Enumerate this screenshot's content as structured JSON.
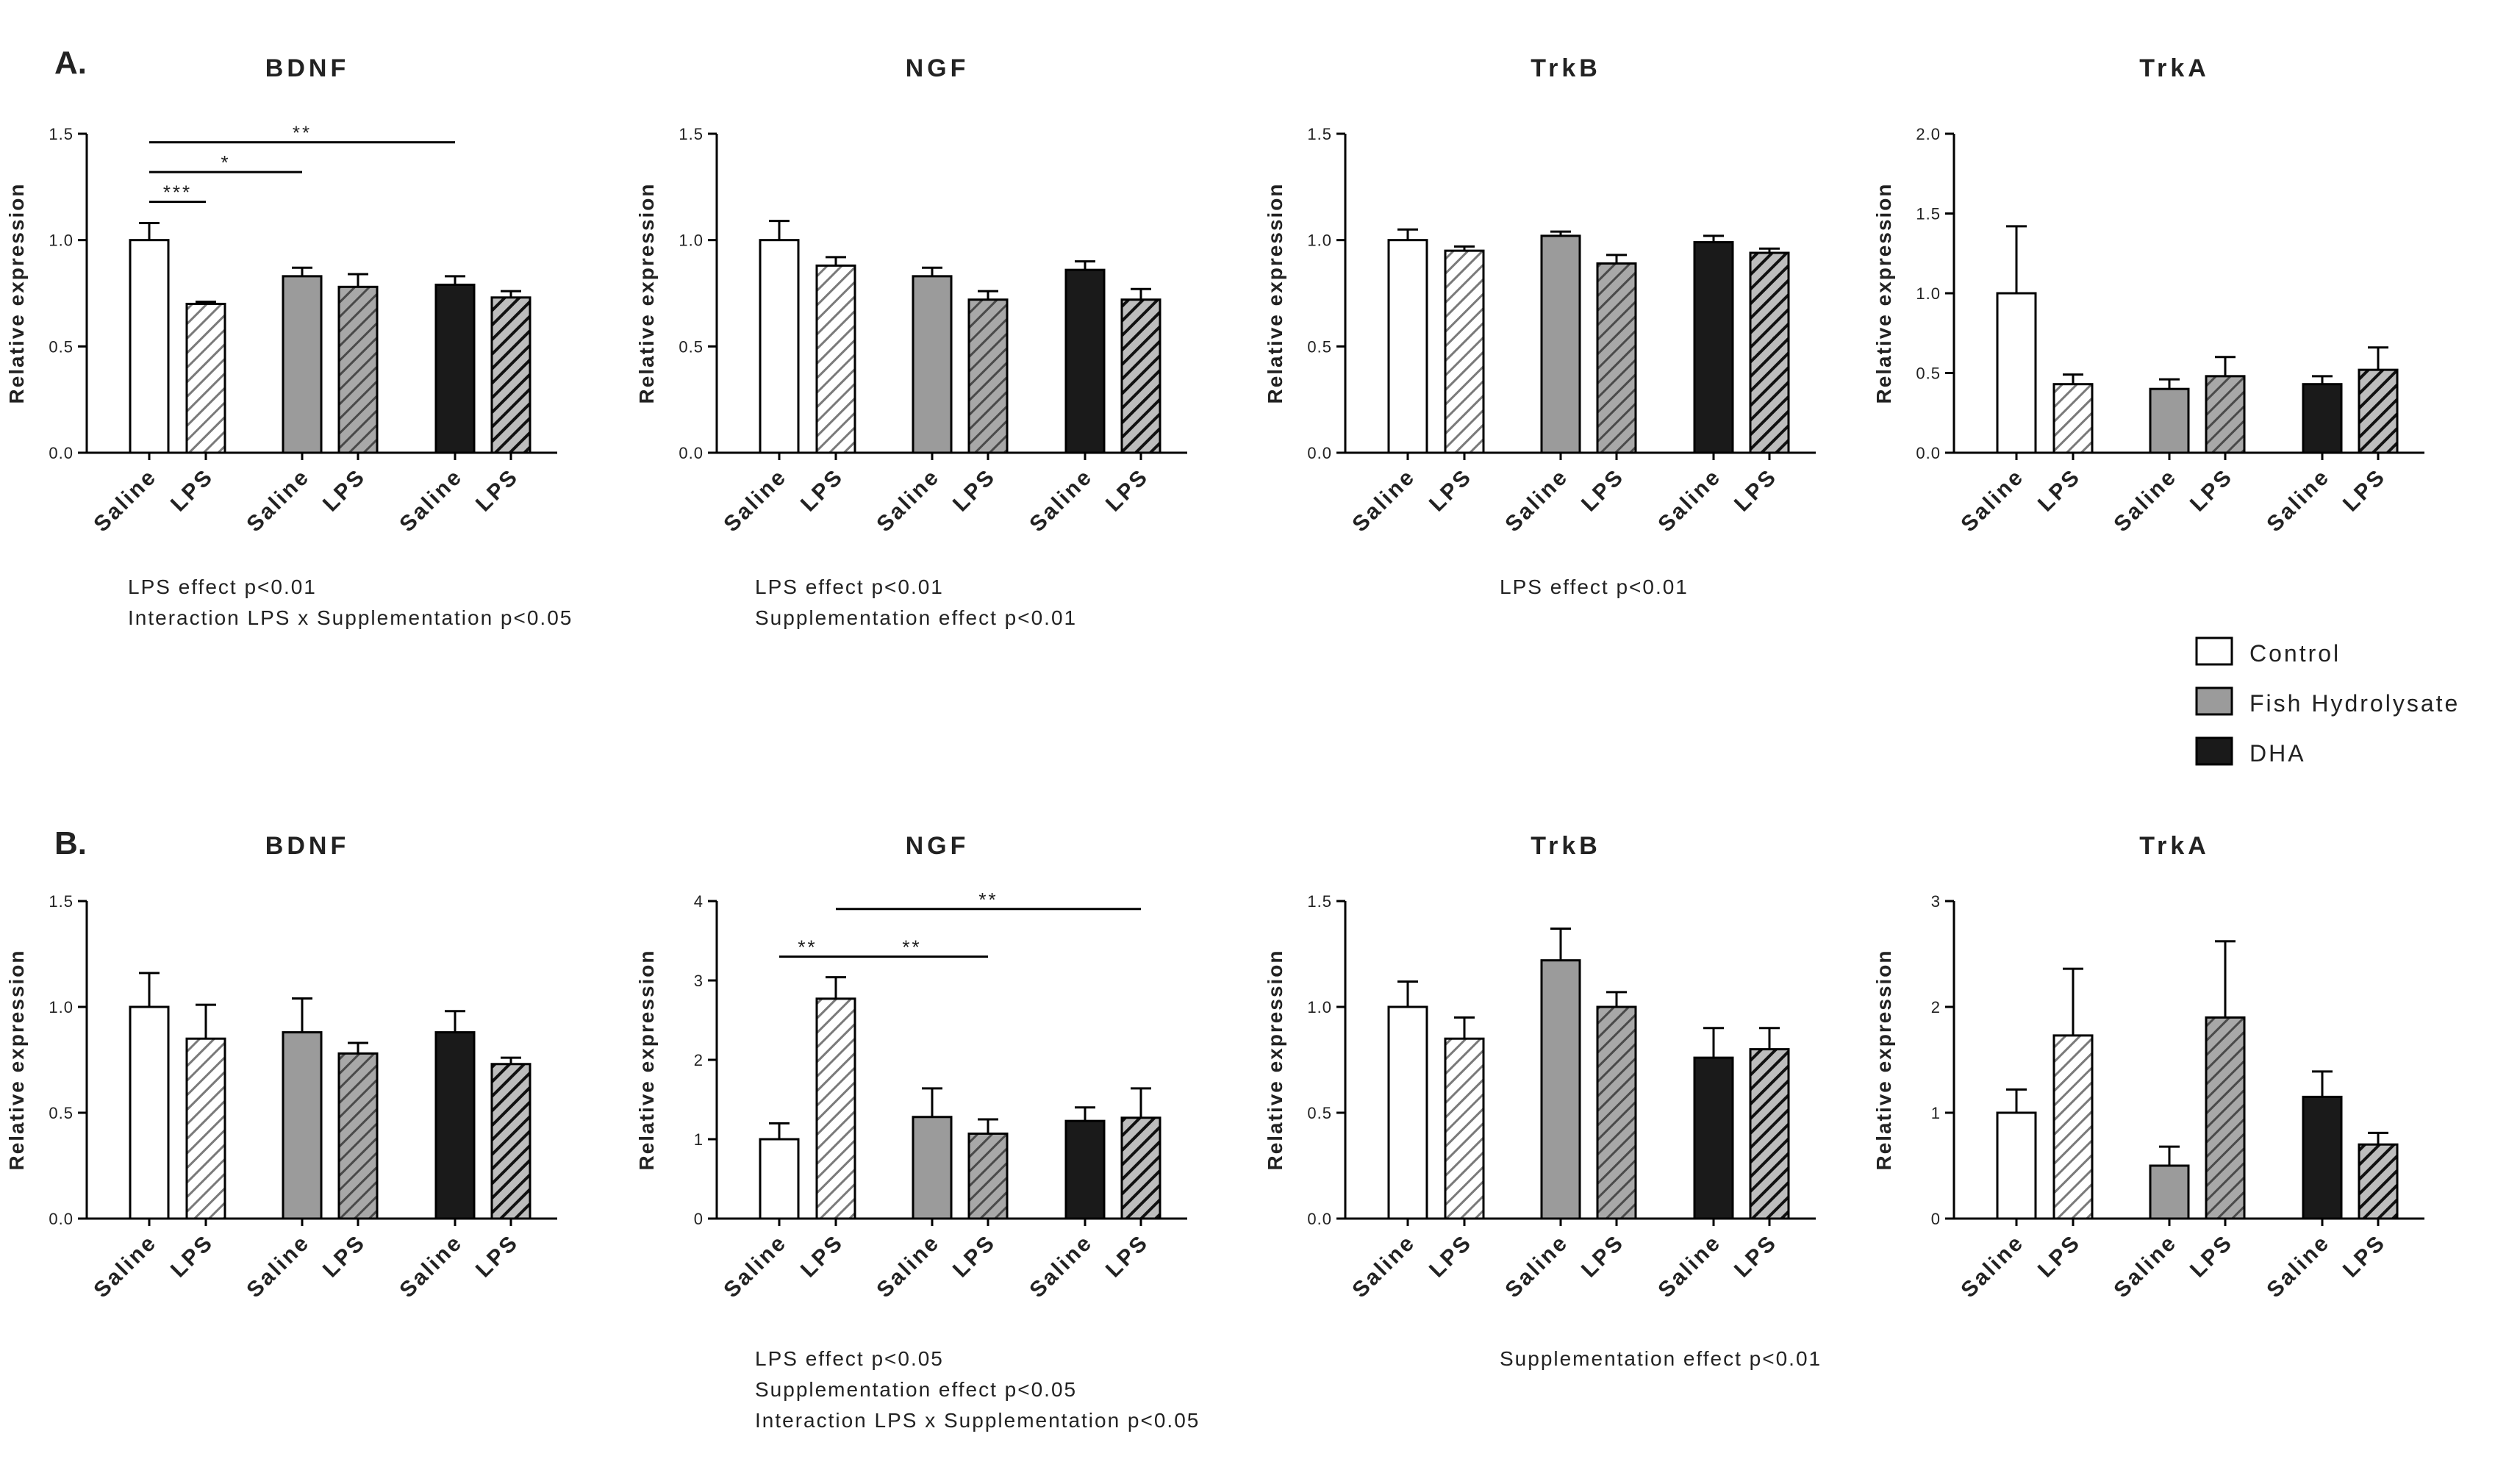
{
  "colors": {
    "control": "#ffffff",
    "fish_hydrolysate": "#9b9b9b",
    "dha": "#1a1a1a",
    "lps_control": "#cfcfcf",
    "lps_fish_hydrolysate": "#7d7d7d",
    "lps_dha": "#2a2a2a",
    "axis": "#000000"
  },
  "legend": [
    {
      "label": "Control",
      "color_key": "control"
    },
    {
      "label": "Fish Hydrolysate",
      "color_key": "fish_hydrolysate"
    },
    {
      "label": "DHA",
      "color_key": "dha"
    }
  ],
  "panels": {
    "A": {
      "label": "A."
    },
    "B": {
      "label": "B."
    }
  },
  "chart_data": [
    {
      "panel": "A",
      "type": "bar",
      "title": "BDNF",
      "ylabel": "Relative expression",
      "xlabel": "",
      "ylim": [
        0,
        1.5
      ],
      "yticks": [
        "0.0",
        "0.5",
        "1.0",
        "1.5"
      ],
      "categories": [
        "Saline",
        "LPS",
        "Saline",
        "LPS",
        "Saline",
        "LPS"
      ],
      "groups": [
        "control",
        "control",
        "fish_hydrolysate",
        "fish_hydrolysate",
        "dha",
        "dha"
      ],
      "values": [
        1.0,
        0.7,
        0.83,
        0.78,
        0.79,
        0.73
      ],
      "errors": [
        0.08,
        0.01,
        0.04,
        0.06,
        0.04,
        0.03
      ],
      "significance": [
        {
          "from": 0,
          "to": 1,
          "label": "***",
          "y": 1.18
        },
        {
          "from": 0,
          "to": 2,
          "label": "*",
          "y": 1.32
        },
        {
          "from": 0,
          "to": 4,
          "label": "**",
          "y": 1.46
        }
      ],
      "notes": [
        "LPS effect p<0.01",
        "Interaction LPS x Supplementation p<0.05"
      ]
    },
    {
      "panel": "A",
      "type": "bar",
      "title": "NGF",
      "ylabel": "Relative expression",
      "xlabel": "",
      "ylim": [
        0,
        1.5
      ],
      "yticks": [
        "0.0",
        "0.5",
        "1.0",
        "1.5"
      ],
      "categories": [
        "Saline",
        "LPS",
        "Saline",
        "LPS",
        "Saline",
        "LPS"
      ],
      "groups": [
        "control",
        "control",
        "fish_hydrolysate",
        "fish_hydrolysate",
        "dha",
        "dha"
      ],
      "values": [
        1.0,
        0.88,
        0.83,
        0.72,
        0.86,
        0.72
      ],
      "errors": [
        0.09,
        0.04,
        0.04,
        0.04,
        0.04,
        0.05
      ],
      "significance": [],
      "notes": [
        "LPS effect p<0.01",
        "Supplementation effect p<0.01"
      ]
    },
    {
      "panel": "A",
      "type": "bar",
      "title": "TrkB",
      "ylabel": "Relative expression",
      "xlabel": "",
      "ylim": [
        0,
        1.5
      ],
      "yticks": [
        "0.0",
        "0.5",
        "1.0",
        "1.5"
      ],
      "categories": [
        "Saline",
        "LPS",
        "Saline",
        "LPS",
        "Saline",
        "LPS"
      ],
      "groups": [
        "control",
        "control",
        "fish_hydrolysate",
        "fish_hydrolysate",
        "dha",
        "dha"
      ],
      "values": [
        1.0,
        0.95,
        1.02,
        0.89,
        0.99,
        0.94
      ],
      "errors": [
        0.05,
        0.02,
        0.02,
        0.04,
        0.03,
        0.02
      ],
      "significance": [],
      "notes": [
        "LPS effect p<0.01"
      ]
    },
    {
      "panel": "A",
      "type": "bar",
      "title": "TrkA",
      "ylabel": "Relative expression",
      "xlabel": "",
      "ylim": [
        0,
        2.0
      ],
      "yticks": [
        "0.0",
        "0.5",
        "1.0",
        "1.5",
        "2.0"
      ],
      "categories": [
        "Saline",
        "LPS",
        "Saline",
        "LPS",
        "Saline",
        "LPS"
      ],
      "groups": [
        "control",
        "control",
        "fish_hydrolysate",
        "fish_hydrolysate",
        "dha",
        "dha"
      ],
      "values": [
        1.0,
        0.43,
        0.4,
        0.48,
        0.43,
        0.52
      ],
      "errors": [
        0.42,
        0.06,
        0.06,
        0.12,
        0.05,
        0.14
      ],
      "significance": [],
      "notes": []
    },
    {
      "panel": "B",
      "type": "bar",
      "title": "BDNF",
      "ylabel": "Relative expression",
      "xlabel": "",
      "ylim": [
        0,
        1.5
      ],
      "yticks": [
        "0.0",
        "0.5",
        "1.0",
        "1.5"
      ],
      "categories": [
        "Saline",
        "LPS",
        "Saline",
        "LPS",
        "Saline",
        "LPS"
      ],
      "groups": [
        "control",
        "control",
        "fish_hydrolysate",
        "fish_hydrolysate",
        "dha",
        "dha"
      ],
      "values": [
        1.0,
        0.85,
        0.88,
        0.78,
        0.88,
        0.73
      ],
      "errors": [
        0.16,
        0.16,
        0.16,
        0.05,
        0.1,
        0.03
      ],
      "significance": [],
      "notes": []
    },
    {
      "panel": "B",
      "type": "bar",
      "title": "NGF",
      "ylabel": "Relative expression",
      "xlabel": "",
      "ylim": [
        0,
        4
      ],
      "yticks": [
        "0",
        "1",
        "2",
        "3",
        "4"
      ],
      "categories": [
        "Saline",
        "LPS",
        "Saline",
        "LPS",
        "Saline",
        "LPS"
      ],
      "groups": [
        "control",
        "control",
        "fish_hydrolysate",
        "fish_hydrolysate",
        "dha",
        "dha"
      ],
      "values": [
        1.0,
        2.77,
        1.28,
        1.07,
        1.23,
        1.27
      ],
      "errors": [
        0.2,
        0.27,
        0.36,
        0.18,
        0.17,
        0.37
      ],
      "significance": [
        {
          "from": 0,
          "to": 1,
          "label": "**",
          "y": 3.3
        },
        {
          "from": 1,
          "to": 3,
          "label": "**",
          "y": 3.3
        },
        {
          "from": 1,
          "to": 5,
          "label": "**",
          "y": 3.9
        }
      ],
      "notes": [
        "LPS effect p<0.05",
        "Supplementation effect p<0.05",
        "Interaction LPS x Supplementation p<0.05"
      ]
    },
    {
      "panel": "B",
      "type": "bar",
      "title": "TrkB",
      "ylabel": "Relative expression",
      "xlabel": "",
      "ylim": [
        0,
        1.5
      ],
      "yticks": [
        "0.0",
        "0.5",
        "1.0",
        "1.5"
      ],
      "categories": [
        "Saline",
        "LPS",
        "Saline",
        "LPS",
        "Saline",
        "LPS"
      ],
      "groups": [
        "control",
        "control",
        "fish_hydrolysate",
        "fish_hydrolysate",
        "dha",
        "dha"
      ],
      "values": [
        1.0,
        0.85,
        1.22,
        1.0,
        0.76,
        0.8
      ],
      "errors": [
        0.12,
        0.1,
        0.15,
        0.07,
        0.14,
        0.1
      ],
      "significance": [],
      "notes": [
        "Supplementation effect p<0.01"
      ]
    },
    {
      "panel": "B",
      "type": "bar",
      "title": "TrkA",
      "ylabel": "Relative expression",
      "xlabel": "",
      "ylim": [
        0,
        3
      ],
      "yticks": [
        "0",
        "1",
        "2",
        "3"
      ],
      "categories": [
        "Saline",
        "LPS",
        "Saline",
        "LPS",
        "Saline",
        "LPS"
      ],
      "groups": [
        "control",
        "control",
        "fish_hydrolysate",
        "fish_hydrolysate",
        "dha",
        "dha"
      ],
      "values": [
        1.0,
        1.73,
        0.5,
        1.9,
        1.15,
        0.7
      ],
      "errors": [
        0.22,
        0.63,
        0.18,
        0.72,
        0.24,
        0.11
      ],
      "significance": [],
      "notes": []
    }
  ]
}
